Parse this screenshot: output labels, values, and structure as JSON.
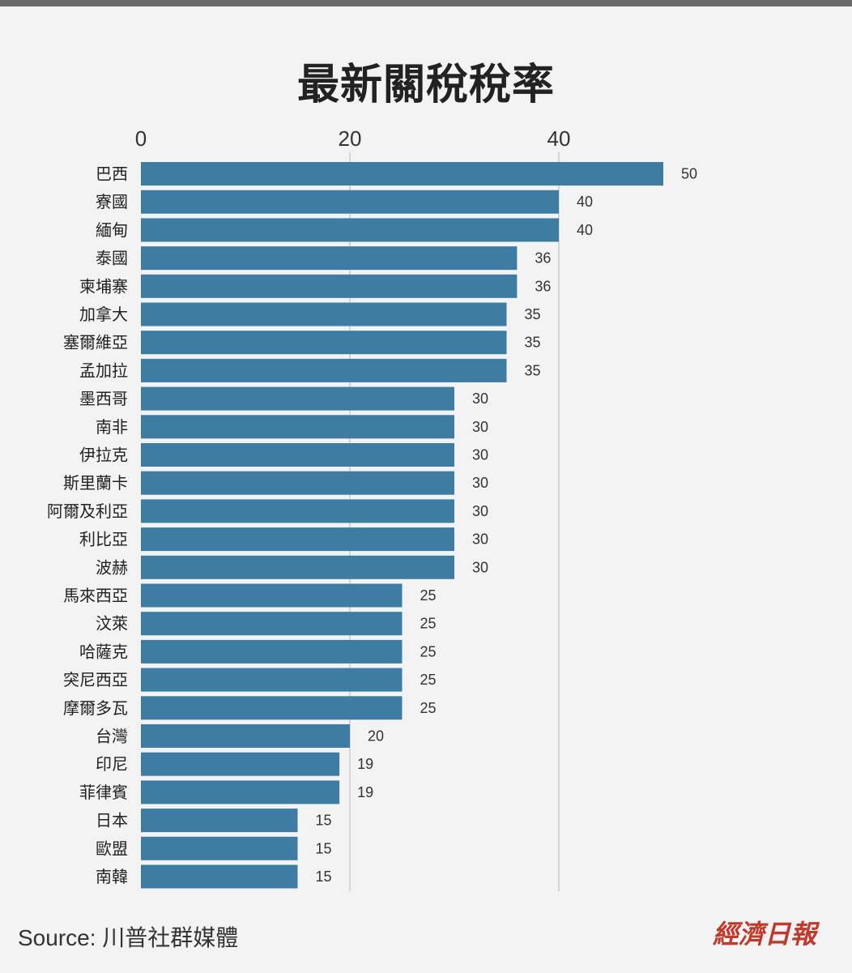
{
  "title": "最新關稅稅率",
  "source": "Source: 川普社群媒體",
  "publisher_logo": "經濟日報",
  "colors": {
    "bar": "#3e7ca3",
    "grid": "#cccccc",
    "logo": "#c0392b"
  },
  "chart_data": {
    "type": "bar",
    "orientation": "horizontal",
    "title": "最新關稅稅率",
    "xlim": [
      0,
      50
    ],
    "xticks": [
      0,
      20,
      40
    ],
    "grid": true,
    "categories": [
      "巴西",
      "寮國",
      "緬甸",
      "泰國",
      "柬埔寨",
      "加拿大",
      "塞爾維亞",
      "孟加拉",
      "墨西哥",
      "南非",
      "伊拉克",
      "斯里蘭卡",
      "阿爾及利亞",
      "利比亞",
      "波赫",
      "馬來西亞",
      "汶萊",
      "哈薩克",
      "突尼西亞",
      "摩爾多瓦",
      "台灣",
      "印尼",
      "菲律賓",
      "日本",
      "歐盟",
      "南韓"
    ],
    "values": [
      50,
      40,
      40,
      36,
      36,
      35,
      35,
      35,
      30,
      30,
      30,
      30,
      30,
      30,
      30,
      25,
      25,
      25,
      25,
      25,
      20,
      19,
      19,
      15,
      15,
      15
    ]
  }
}
